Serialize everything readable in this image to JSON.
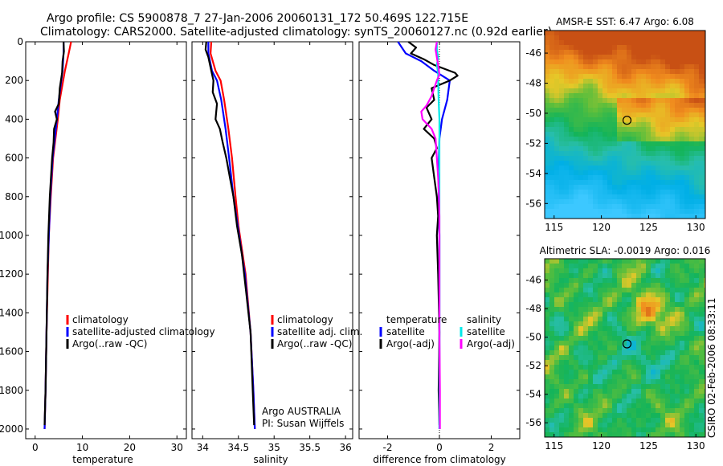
{
  "header": {
    "line1": "Argo profile: CS 5900878_7 27-Jan-2006 20060131_172 50.469S 122.715E",
    "line2": "Climatology: CARS2000. Satellite-adjusted climatology: synTS_20060127.nc (0.92d earlier)"
  },
  "credit": "CSIRO 02-Feb-2006 08:33:11",
  "colors": {
    "climatology": "#ff0000",
    "satellite": "#0000ff",
    "argo": "#000000",
    "salinity_satellite": "#00e8e8",
    "salinity_argo": "#ff00ff"
  },
  "chart_data": [
    {
      "type": "line",
      "name": "temperature-profile",
      "xlabel": "temperature",
      "xlim": [
        -2,
        32
      ],
      "ylim": [
        2050,
        0
      ],
      "xticks": [
        0,
        10,
        20,
        30
      ],
      "yticks": [
        0,
        200,
        400,
        600,
        800,
        1000,
        1200,
        1400,
        1600,
        1800,
        2000
      ],
      "legend": [
        "climatology",
        "satellite-adjusted climatology",
        "Argo(..raw -QC)"
      ],
      "series": [
        {
          "name": "climatology",
          "color": "#ff0000",
          "depth": [
            0,
            60,
            150,
            300,
            400,
            600,
            800,
            1000,
            1200,
            1500,
            1800,
            2000
          ],
          "values": [
            7.6,
            7.1,
            6.3,
            5.2,
            4.8,
            3.8,
            3.3,
            2.9,
            2.7,
            2.4,
            2.2,
            2.0
          ]
        },
        {
          "name": "satellite-adjusted climatology",
          "color": "#0000ff",
          "depth": [
            0,
            60,
            150,
            300,
            400,
            600,
            800,
            1000,
            1200,
            1500,
            1800,
            2000
          ],
          "values": [
            6.0,
            6.0,
            5.8,
            5.0,
            4.6,
            3.7,
            3.2,
            2.9,
            2.6,
            2.4,
            2.2,
            2.0
          ]
        },
        {
          "name": "Argo(..raw -QC)",
          "color": "#000000",
          "depth": [
            0,
            50,
            100,
            160,
            240,
            320,
            360,
            400,
            450,
            520,
            600,
            800,
            1000,
            1200,
            1500,
            1800,
            1980
          ],
          "values": [
            6.0,
            6.1,
            5.8,
            5.7,
            5.2,
            5.0,
            4.2,
            4.6,
            4.0,
            3.9,
            3.6,
            3.1,
            2.8,
            2.6,
            2.4,
            2.2,
            2.0
          ]
        }
      ]
    },
    {
      "type": "line",
      "name": "salinity-profile",
      "xlabel": "salinity",
      "xlim": [
        33.85,
        36.1
      ],
      "ylim": [
        2050,
        0
      ],
      "xticks": [
        34,
        34.5,
        35,
        35.5,
        36
      ],
      "legend": [
        "climatology",
        "satellite adj. clim.",
        "Argo(..raw -QC)"
      ],
      "annotations": [
        "Argo AUSTRALIA",
        "PI: Susan Wijffels"
      ],
      "series": [
        {
          "name": "climatology",
          "color": "#ff0000",
          "depth": [
            0,
            60,
            150,
            200,
            300,
            450,
            600,
            800,
            950,
            1200,
            1500,
            1800,
            2000
          ],
          "values": [
            34.12,
            34.11,
            34.18,
            34.25,
            34.3,
            34.36,
            34.41,
            34.46,
            34.5,
            34.6,
            34.67,
            34.71,
            34.73
          ]
        },
        {
          "name": "satellite adj. clim.",
          "color": "#0000ff",
          "depth": [
            0,
            60,
            150,
            200,
            300,
            450,
            600,
            800,
            950,
            1200,
            1500,
            1800,
            2000
          ],
          "values": [
            34.08,
            34.08,
            34.13,
            34.2,
            34.26,
            34.32,
            34.37,
            34.43,
            34.49,
            34.59,
            34.67,
            34.71,
            34.73
          ]
        },
        {
          "name": "Argo(..raw -QC)",
          "color": "#000000",
          "depth": [
            0,
            40,
            80,
            150,
            200,
            260,
            320,
            400,
            450,
            520,
            600,
            700,
            800,
            950,
            1100,
            1300,
            1500,
            1800,
            1980
          ],
          "values": [
            34.05,
            34.04,
            34.08,
            34.12,
            34.15,
            34.14,
            34.2,
            34.18,
            34.24,
            34.28,
            34.33,
            34.38,
            34.43,
            34.48,
            34.55,
            34.61,
            34.67,
            34.7,
            34.72
          ]
        }
      ]
    },
    {
      "type": "line",
      "name": "difference-profile",
      "xlabel": "difference from climatology",
      "xlim": [
        -3.1,
        3.1
      ],
      "ylim": [
        2050,
        0
      ],
      "xticks": [
        -2,
        0,
        2
      ],
      "legend_temperature": [
        "temperature",
        "satellite",
        "Argo(-adj)"
      ],
      "legend_salinity": [
        "salinity",
        "satellite",
        "Argo(-adj)"
      ],
      "series": [
        {
          "name": "temperature satellite",
          "color": "#0000ff",
          "depth": [
            0,
            60,
            100,
            150,
            200,
            300,
            400,
            500,
            600,
            700,
            800,
            900,
            1000,
            1200,
            1500,
            1800,
            2000
          ],
          "values": [
            -1.6,
            -1.3,
            -0.7,
            -0.2,
            0.4,
            0.3,
            0.1,
            0.0,
            -0.02,
            -0.03,
            -0.03,
            -0.02,
            0.0,
            0.0,
            0.0,
            0.0,
            0.0
          ]
        },
        {
          "name": "temperature Argo(-adj)",
          "color": "#000000",
          "depth": [
            0,
            30,
            60,
            90,
            120,
            160,
            175,
            200,
            240,
            300,
            340,
            400,
            450,
            500,
            550,
            600,
            700,
            800,
            900,
            1000,
            1200,
            1500,
            1800,
            1980
          ],
          "values": [
            -1.2,
            -0.9,
            -1.1,
            -0.6,
            -0.2,
            0.6,
            0.7,
            0.4,
            -0.3,
            -0.2,
            -0.5,
            -0.3,
            -0.6,
            -0.2,
            -0.1,
            -0.3,
            -0.2,
            -0.1,
            -0.05,
            -0.1,
            -0.05,
            0.0,
            -0.03,
            0.0
          ]
        },
        {
          "name": "salinity satellite",
          "color": "#00e8e8",
          "depth": [
            0,
            40,
            80,
            120,
            160,
            200,
            300,
            400,
            500,
            700,
            900,
            1200,
            1500,
            1800,
            2000
          ],
          "values": [
            -0.1,
            -0.1,
            -0.05,
            -0.1,
            -0.05,
            -0.05,
            -0.03,
            0.0,
            0.0,
            0.0,
            0.0,
            0.0,
            0.0,
            0.0,
            0.0
          ]
        },
        {
          "name": "salinity Argo(-adj)",
          "color": "#ff00ff",
          "depth": [
            0,
            40,
            80,
            120,
            170,
            200,
            240,
            280,
            330,
            360,
            400,
            450,
            500,
            600,
            700,
            800,
            900,
            1000,
            1200,
            1500,
            1800,
            2000
          ],
          "values": [
            -0.1,
            -0.15,
            -0.1,
            -0.05,
            0.0,
            -0.1,
            -0.2,
            -0.3,
            -0.5,
            -0.7,
            -0.65,
            -0.3,
            -0.15,
            -0.1,
            -0.05,
            -0.02,
            0.0,
            0.0,
            0.0,
            0.0,
            0.02,
            0.02
          ]
        }
      ]
    },
    {
      "type": "heatmap",
      "name": "amsr-e-sst-map",
      "title": "AMSR-E SST: 6.47 Argo: 6.08",
      "xlim": [
        114,
        131
      ],
      "ylim": [
        -57,
        -44.5
      ],
      "xticks": [
        115,
        120,
        125,
        130
      ],
      "yticks": [
        -46,
        -48,
        -50,
        -52,
        -54,
        -56
      ],
      "argo_position": {
        "lon": 122.715,
        "lat": -50.469
      }
    },
    {
      "type": "heatmap",
      "name": "altimetric-sla-map",
      "title": "Altimetric SLA: -0.0019 Argo: 0.016",
      "xlim": [
        114,
        131
      ],
      "ylim": [
        -57,
        -44.5
      ],
      "xticks": [
        115,
        120,
        125,
        130
      ],
      "yticks": [
        -46,
        -48,
        -50,
        -52,
        -54,
        -56
      ],
      "argo_position": {
        "lon": 122.715,
        "lat": -50.469
      }
    }
  ]
}
